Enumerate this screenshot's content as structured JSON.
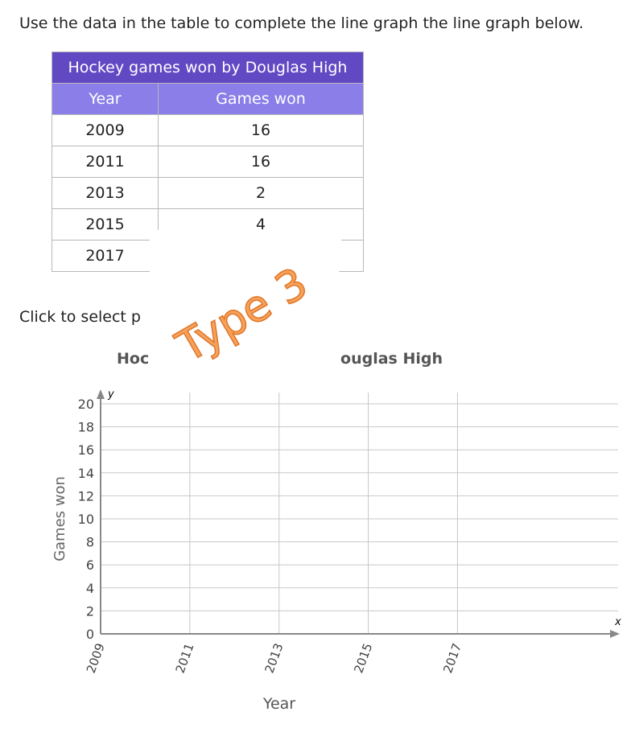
{
  "instruction": "Use the data in the table to complete the line graph the line graph below.",
  "table": {
    "title": "Hockey games won by Douglas High",
    "headers": [
      "Year",
      "Games won"
    ],
    "rows": [
      [
        2009,
        16
      ],
      [
        2011,
        16
      ],
      [
        2013,
        2
      ],
      [
        2015,
        4
      ],
      [
        2017
      ]
    ]
  },
  "prompt": "Click to select p",
  "sticker": "Type 3",
  "chart_data": {
    "type": "line",
    "title_parts": [
      "Hoc",
      "ouglas High"
    ],
    "x_label": "Year",
    "y_label": "Games won",
    "x_axis_symbol": "x",
    "y_axis_symbol": "y",
    "xlim": [
      2009,
      2020.6
    ],
    "xticks": [
      2009,
      2011,
      2013,
      2015,
      2017
    ],
    "ylim": [
      0,
      20
    ],
    "yticks": [
      0,
      2,
      4,
      6,
      8,
      10,
      12,
      14,
      16,
      18,
      20
    ],
    "grid": true
  }
}
